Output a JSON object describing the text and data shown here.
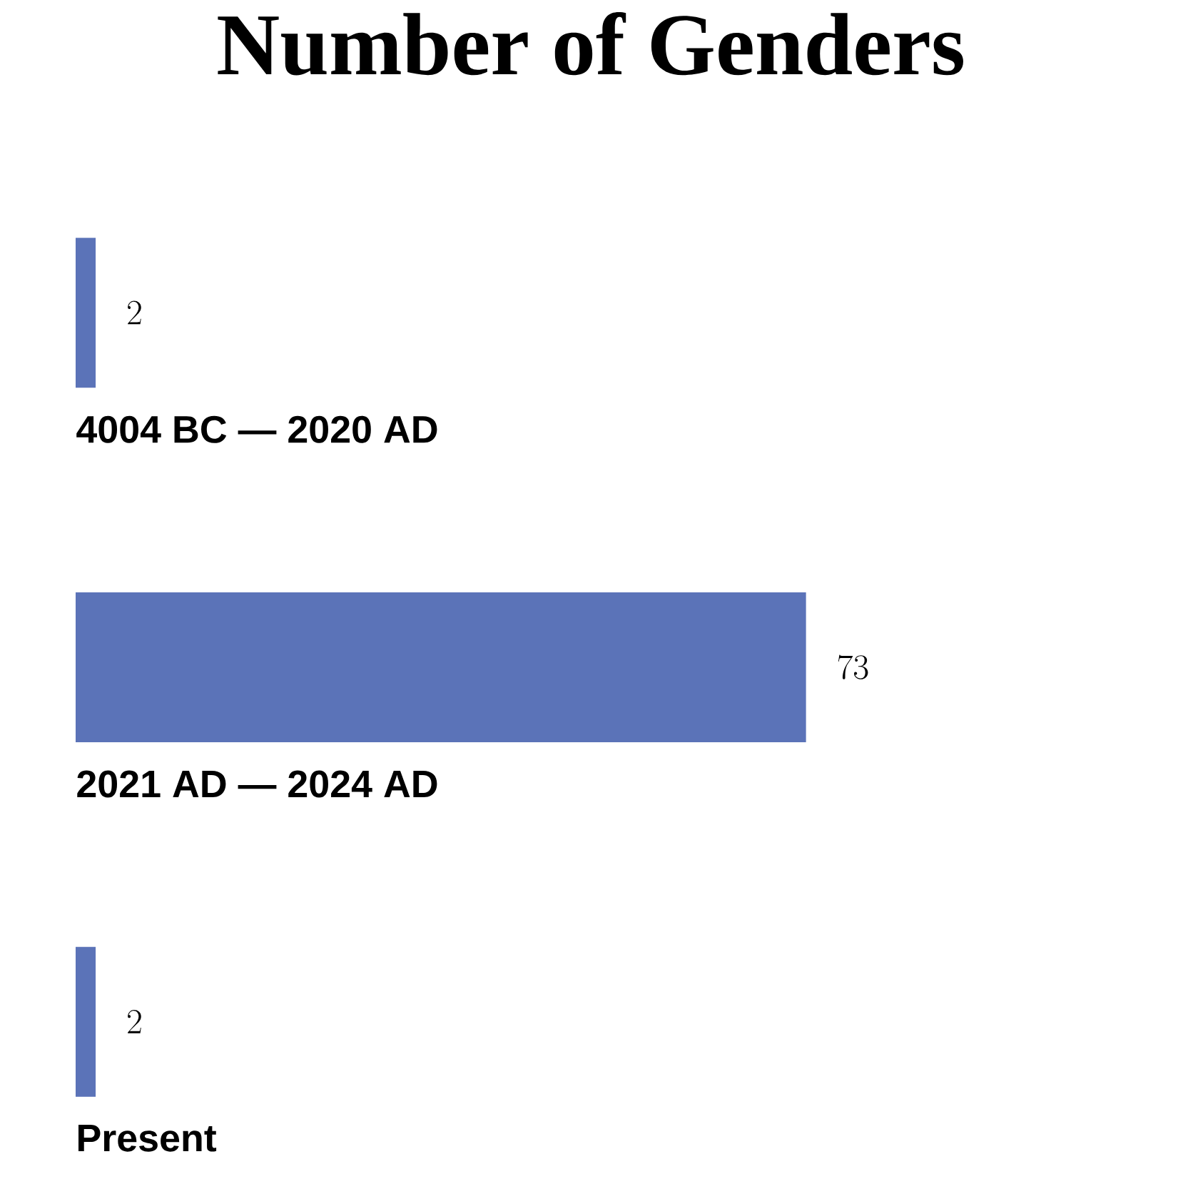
{
  "chart_data": {
    "type": "bar",
    "orientation": "horizontal",
    "title": "Number of Genders",
    "categories": [
      "4004 BC — 2020 AD",
      "2021 AD — 2024 AD",
      "Present"
    ],
    "values": [
      2,
      73,
      2
    ],
    "color": "#5b73b8",
    "data_labels": true
  }
}
